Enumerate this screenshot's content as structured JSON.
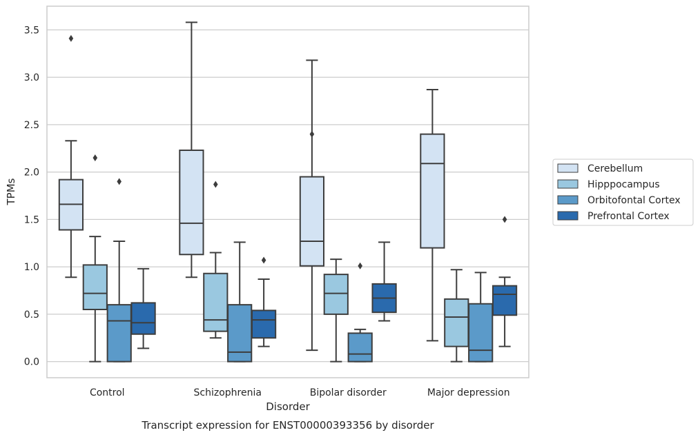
{
  "chart_data": {
    "type": "box",
    "caption": "Transcript expression for ENST00000393356 by disorder",
    "xlabel": "Disorder",
    "ylabel": "TPMs",
    "ylim": [
      -0.17,
      3.75
    ],
    "yticks": [
      0.0,
      0.5,
      1.0,
      1.5,
      2.0,
      2.5,
      3.0,
      3.5
    ],
    "ytick_labels": [
      "0.0",
      "0.5",
      "1.0",
      "1.5",
      "2.0",
      "2.5",
      "3.0",
      "3.5"
    ],
    "grid": "horizontal",
    "legend_placement": "right",
    "categories": [
      "Control",
      "Schizophrenia",
      "Bipolar disorder",
      "Major depression"
    ],
    "series": [
      {
        "name": "Cerebellum",
        "color": "#d3e3f3",
        "boxes": [
          {
            "whislo": 0.89,
            "q1": 1.39,
            "med": 1.66,
            "q3": 1.92,
            "whishi": 2.33,
            "fliers": [
              3.41
            ]
          },
          {
            "whislo": 0.89,
            "q1": 1.13,
            "med": 1.46,
            "q3": 2.23,
            "whishi": 3.58,
            "fliers": []
          },
          {
            "whislo": 0.12,
            "q1": 1.01,
            "med": 1.27,
            "q3": 1.95,
            "whishi": 3.18,
            "fliers": [
              2.4
            ]
          },
          {
            "whislo": 0.22,
            "q1": 1.2,
            "med": 2.09,
            "q3": 2.4,
            "whishi": 2.87,
            "fliers": []
          }
        ]
      },
      {
        "name": "Hipppocampus",
        "color": "#9ac8e0",
        "boxes": [
          {
            "whislo": 0.0,
            "q1": 0.55,
            "med": 0.72,
            "q3": 1.02,
            "whishi": 1.32,
            "fliers": [
              2.15
            ]
          },
          {
            "whislo": 0.25,
            "q1": 0.32,
            "med": 0.44,
            "q3": 0.93,
            "whishi": 1.15,
            "fliers": [
              1.87
            ]
          },
          {
            "whislo": 0.0,
            "q1": 0.5,
            "med": 0.72,
            "q3": 0.92,
            "whishi": 1.08,
            "fliers": []
          },
          {
            "whislo": 0.0,
            "q1": 0.16,
            "med": 0.47,
            "q3": 0.66,
            "whishi": 0.97,
            "fliers": []
          }
        ]
      },
      {
        "name": "Orbitofontal Cortex",
        "color": "#5b9ac9",
        "boxes": [
          {
            "whislo": 0.0,
            "q1": 0.0,
            "med": 0.43,
            "q3": 0.6,
            "whishi": 1.27,
            "fliers": [
              1.9
            ]
          },
          {
            "whislo": 0.0,
            "q1": 0.0,
            "med": 0.1,
            "q3": 0.6,
            "whishi": 1.26,
            "fliers": []
          },
          {
            "whislo": 0.0,
            "q1": 0.0,
            "med": 0.08,
            "q3": 0.3,
            "whishi": 0.34,
            "fliers": [
              1.01
            ]
          },
          {
            "whislo": 0.0,
            "q1": 0.0,
            "med": 0.12,
            "q3": 0.61,
            "whishi": 0.94,
            "fliers": []
          }
        ]
      },
      {
        "name": "Prefrontal Cortex",
        "color": "#2a6aad",
        "boxes": [
          {
            "whislo": 0.14,
            "q1": 0.29,
            "med": 0.41,
            "q3": 0.62,
            "whishi": 0.98,
            "fliers": []
          },
          {
            "whislo": 0.16,
            "q1": 0.25,
            "med": 0.44,
            "q3": 0.54,
            "whishi": 0.87,
            "fliers": [
              1.07
            ]
          },
          {
            "whislo": 0.43,
            "q1": 0.52,
            "med": 0.67,
            "q3": 0.82,
            "whishi": 1.26,
            "fliers": []
          },
          {
            "whislo": 0.16,
            "q1": 0.49,
            "med": 0.71,
            "q3": 0.8,
            "whishi": 0.89,
            "fliers": [
              1.5
            ]
          }
        ]
      }
    ]
  }
}
